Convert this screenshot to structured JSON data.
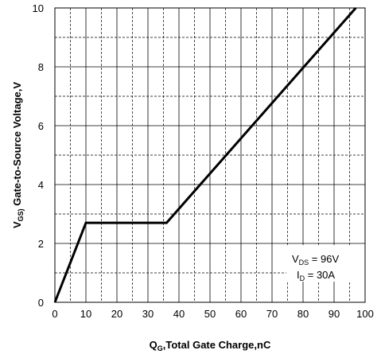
{
  "chart_data": {
    "type": "line",
    "xlabel": {
      "main": "Q",
      "sub": "G",
      "rest": ",Total Gate Charge,nC"
    },
    "ylabel": {
      "main": "V",
      "sub": "GS)",
      "rest": " Gate-to-Source Voltage,V"
    },
    "xlim": [
      0,
      100
    ],
    "ylim": [
      0,
      10
    ],
    "x_ticks": [
      0,
      10,
      20,
      30,
      40,
      50,
      60,
      70,
      80,
      90,
      100
    ],
    "y_ticks": [
      0,
      2,
      4,
      6,
      8,
      10
    ],
    "x_tick_labels": [
      "0",
      "10",
      "20",
      "30",
      "40",
      "50",
      "60",
      "70",
      "80",
      "90",
      "100"
    ],
    "y_tick_labels": [
      "0",
      "2",
      "4",
      "6",
      "8",
      "10"
    ],
    "grid": {
      "major": "solid",
      "minor": "dashed",
      "minor_x_step": 5,
      "minor_y_step": 1
    },
    "series": [
      {
        "x": [
          0,
          10,
          36,
          97
        ],
        "y": [
          0,
          2.7,
          2.7,
          10
        ],
        "color": "#000000"
      }
    ],
    "annotations": [
      {
        "main": "V",
        "sub": "DS",
        "rest": " = 96V"
      },
      {
        "main": "I",
        "sub": "D",
        "rest": " = 30A"
      }
    ]
  }
}
